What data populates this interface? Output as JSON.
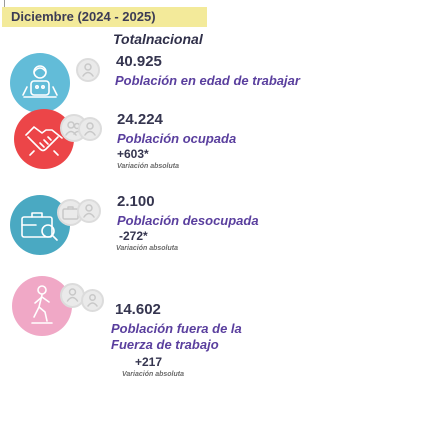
{
  "header": {
    "period": "Diciembre (2024 - 2025)",
    "title": "Totalnacional"
  },
  "indicators": [
    {
      "value": "40.925",
      "label": "Población en edad de trabajar",
      "icon": "working-age-people-icon",
      "color": "#62bcd8"
    },
    {
      "value": "24.224",
      "label": "Población ocupada",
      "delta": "+603*",
      "note": "Variación absoluta",
      "icon": "handshake-icon",
      "color": "#ec4548"
    },
    {
      "value": "2.100",
      "label": "Población desocupada",
      "delta": "-272*",
      "note": "Variación absoluta",
      "icon": "briefcase-search-icon",
      "color": "#4aa9c2"
    },
    {
      "value": "14.602",
      "label": "Población fuera de la Fuerza de trabajo",
      "delta": "+217",
      "note": "Variación absoluta",
      "icon": "person-walking-icon",
      "color": "#f0a8c6"
    }
  ]
}
